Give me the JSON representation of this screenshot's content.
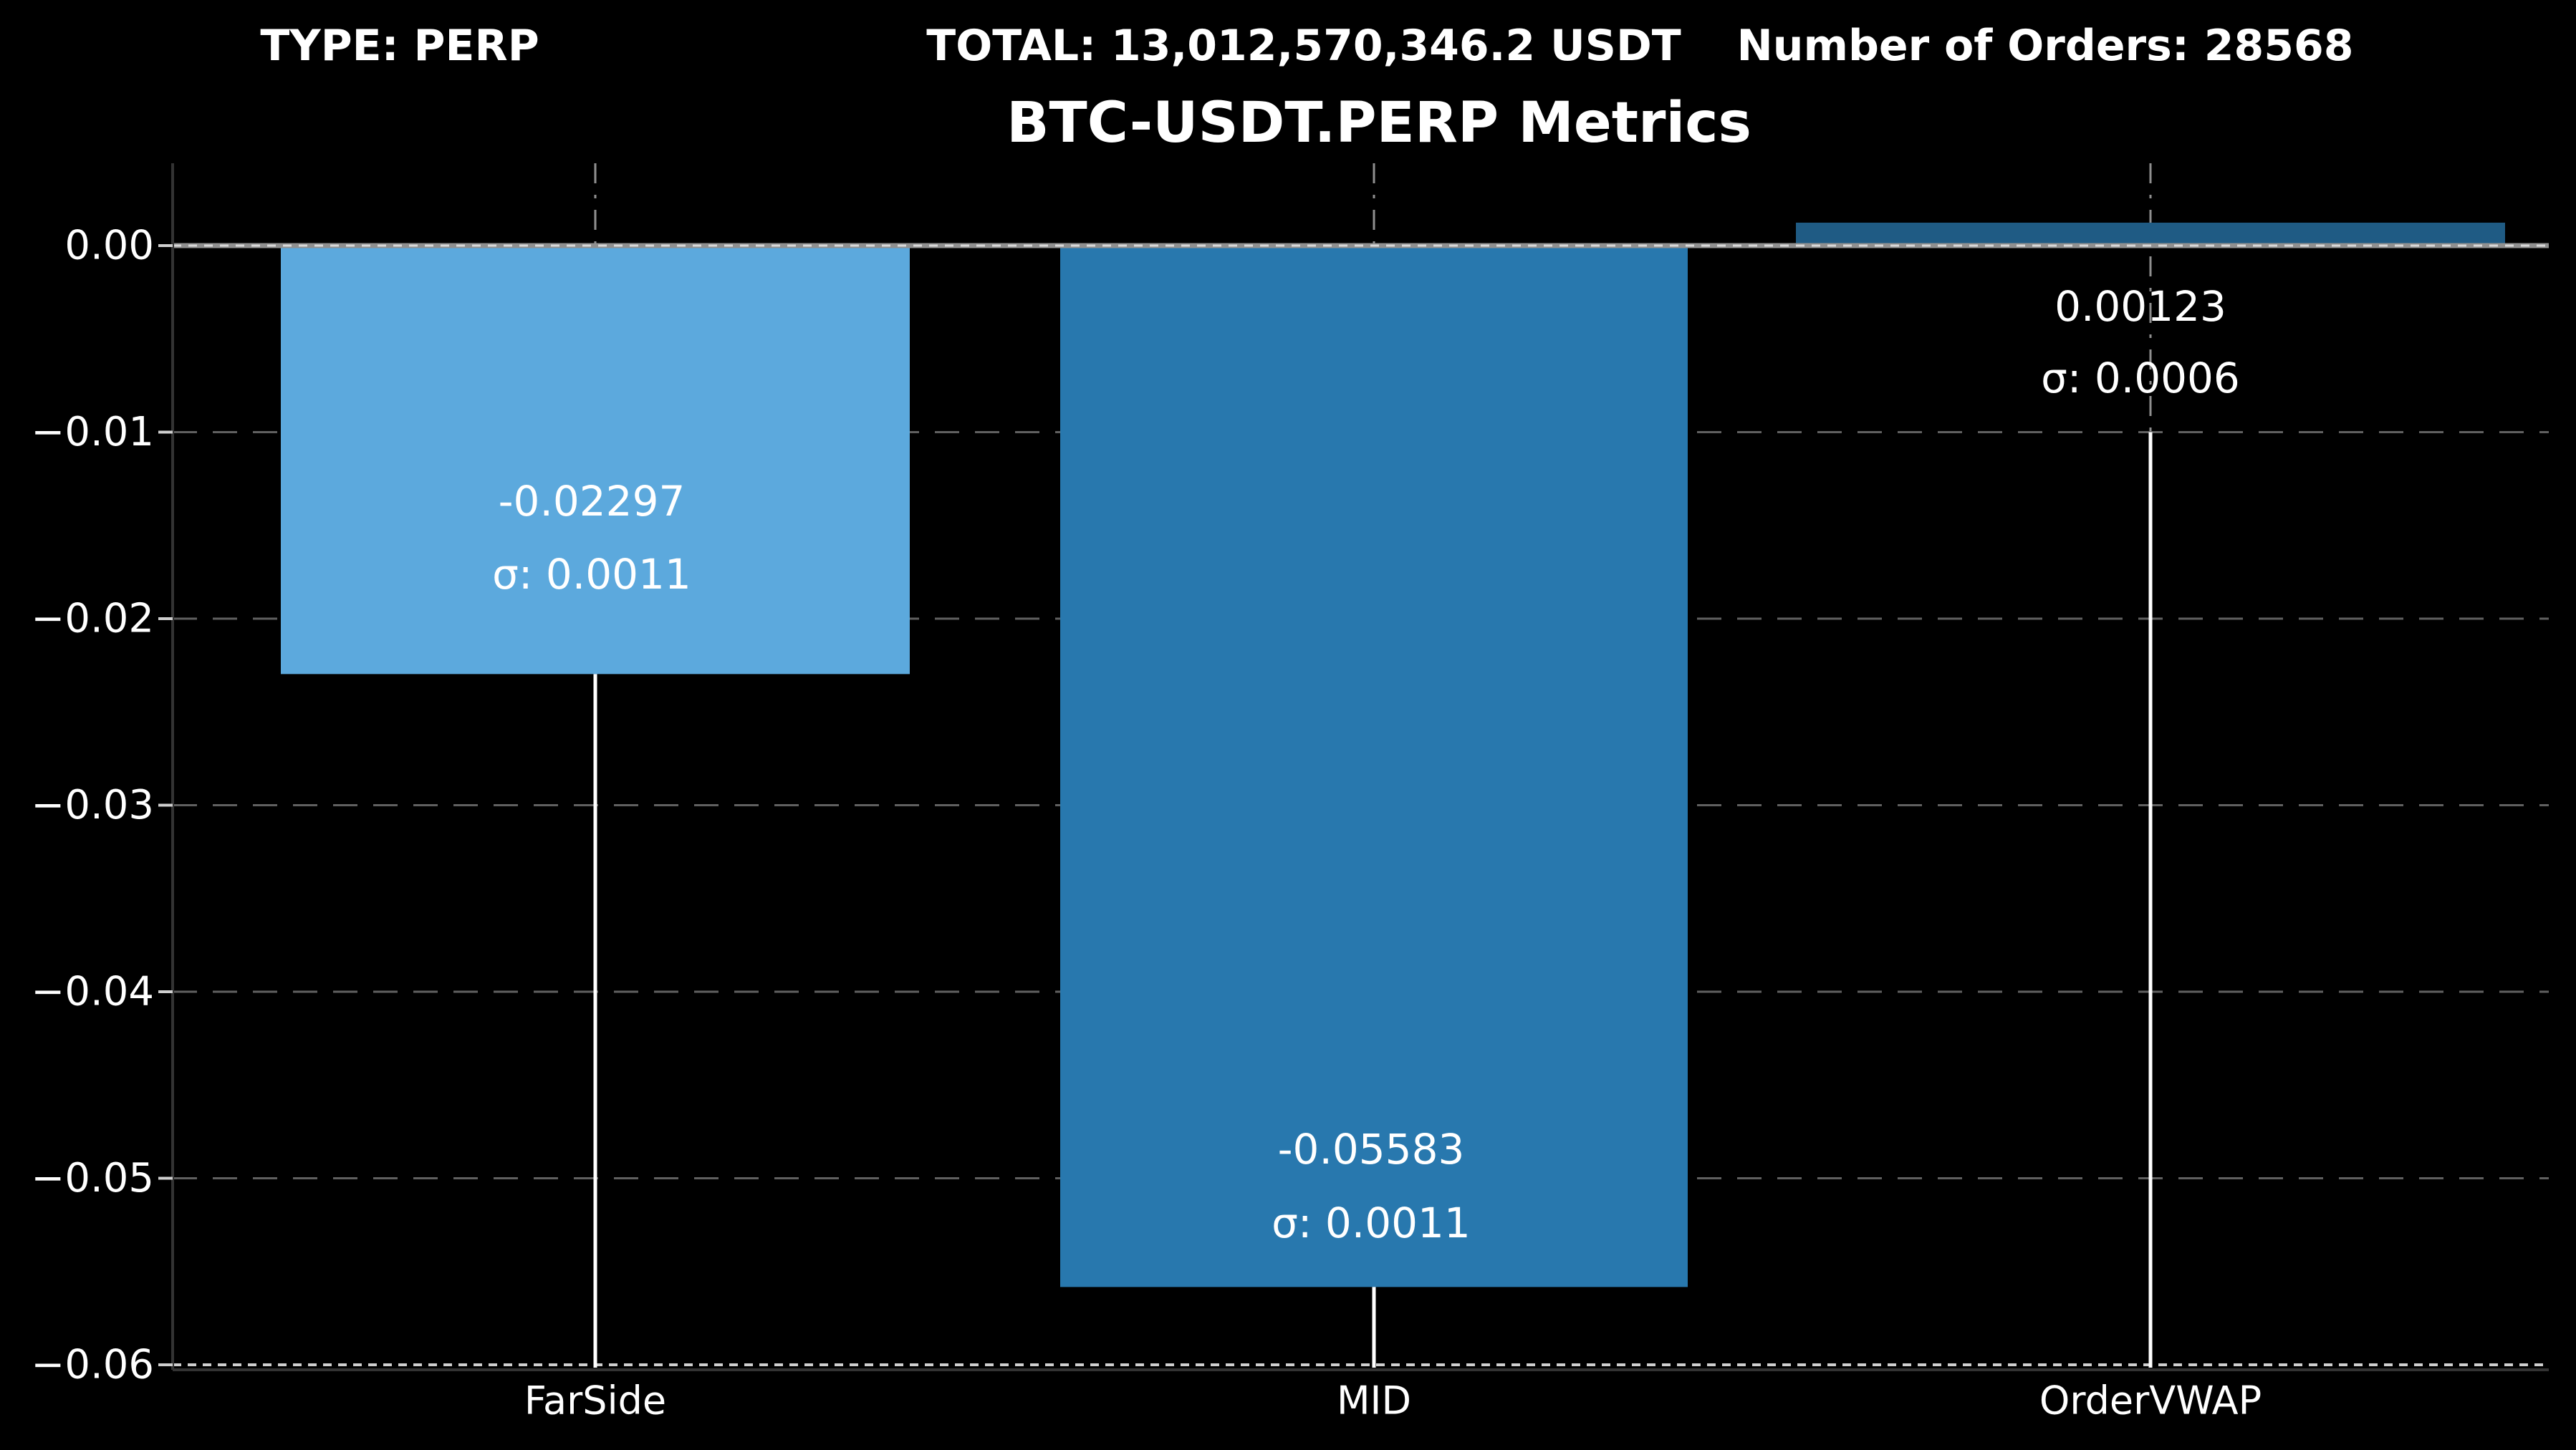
{
  "header": {
    "type_label": "TYPE: PERP",
    "total_label": "TOTAL: 13,012,570,346.2 USDT",
    "orders_label": "Number of Orders: 28568"
  },
  "title": "BTC-USDT.PERP Metrics",
  "colors": {
    "background": "#000000",
    "text": "#ffffff",
    "grid_dashed": "#606060",
    "grid_vertical": "#8f8f8f",
    "grid_bottom": "#cfcfcf",
    "zero_line": "#909090",
    "spine": "#333333",
    "drop_line": "#ffffff"
  },
  "chart_data": {
    "type": "bar",
    "title": "BTC-USDT.PERP Metrics",
    "categories": [
      "FarSide",
      "MID",
      "OrderVWAP"
    ],
    "values": [
      -0.02297,
      -0.05583,
      0.00123
    ],
    "sigmas": [
      0.0011,
      0.0011,
      0.0006
    ],
    "series": [
      {
        "name": "FarSide",
        "value": -0.02297,
        "sigma": 0.0011,
        "value_label": "-0.02297",
        "sigma_label": "σ: 0.0011",
        "color": "#5CA9DD"
      },
      {
        "name": "MID",
        "value": -0.05583,
        "sigma": 0.0011,
        "value_label": "-0.05583",
        "sigma_label": "σ: 0.0011",
        "color": "#2878AE"
      },
      {
        "name": "OrderVWAP",
        "value": 0.00123,
        "sigma": 0.0006,
        "value_label": "0.00123",
        "sigma_label": "σ: 0.0006",
        "color": "#1F5B84"
      }
    ],
    "drop_lines": [
      {
        "category": "FarSide",
        "from": -0.02297,
        "to": -0.0601
      },
      {
        "category": "MID",
        "from": -0.05583,
        "to": -0.0601
      },
      {
        "category": "OrderVWAP",
        "from": -0.01,
        "to": -0.0601
      }
    ],
    "xlabel": "",
    "ylabel": "",
    "y_ticks": [
      {
        "label": "0.00",
        "value": 0.0
      },
      {
        "label": "−0.01",
        "value": -0.01
      },
      {
        "label": "−0.02",
        "value": -0.02
      },
      {
        "label": "−0.03",
        "value": -0.03
      },
      {
        "label": "−0.04",
        "value": -0.04
      },
      {
        "label": "−0.05",
        "value": -0.05
      },
      {
        "label": "−0.06",
        "value": -0.06
      }
    ],
    "ylim": [
      -0.0605,
      0.0044
    ],
    "grid": true,
    "legend": false
  }
}
